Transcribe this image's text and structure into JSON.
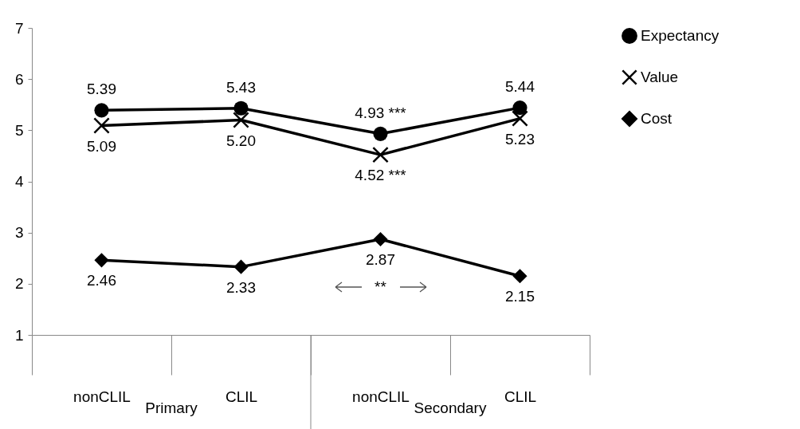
{
  "chart_data": {
    "type": "line",
    "categories": [
      "nonCLIL",
      "CLIL",
      "nonCLIL",
      "CLIL"
    ],
    "series": [
      {
        "name": "Expectancy",
        "color": "#000000",
        "marker": "circle",
        "values": [
          5.39,
          5.43,
          4.93,
          5.44
        ],
        "value_labels": [
          "5.39",
          "5.43",
          "4.93 ***",
          "5.44"
        ]
      },
      {
        "name": "Value",
        "color": "#000000",
        "marker": "cross",
        "values": [
          5.09,
          5.2,
          4.52,
          5.23
        ],
        "value_labels": [
          "5.09",
          "5.20",
          "4.52 ***",
          "5.23"
        ]
      },
      {
        "name": "Cost",
        "color": "#000000",
        "marker": "diamond",
        "values": [
          2.46,
          2.33,
          2.87,
          2.15
        ],
        "value_labels": [
          "2.46",
          "2.33",
          "2.87\n**",
          "2.15"
        ]
      }
    ],
    "ylim": [
      1,
      7
    ],
    "yticks": [
      1,
      2,
      3,
      4,
      5,
      6,
      7
    ],
    "grid": false,
    "legend": "right",
    "annotations": [
      "Primary",
      "Secondary"
    ]
  }
}
